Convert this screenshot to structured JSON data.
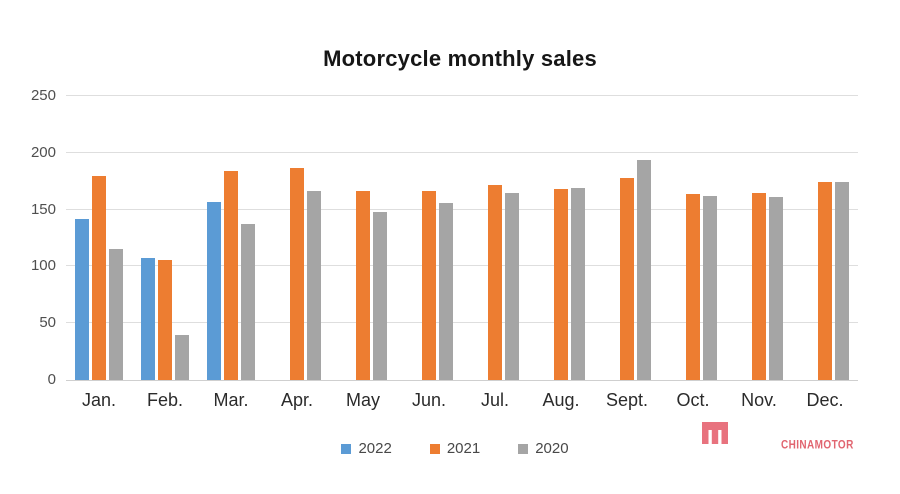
{
  "title": "Motorcycle monthly sales",
  "colors": {
    "series_2022": "#5B9BD5",
    "series_2021": "#ED7D31",
    "series_2020": "#A5A5A5",
    "gridline": "#DEDEDE",
    "axis_line": "#CFCFCF",
    "y_tick_text": "#4F4F4F",
    "x_label_text": "#2B2B2B",
    "title_text": "#161616",
    "watermark_red": "#E16570"
  },
  "chart_data": {
    "type": "bar",
    "title": "Motorcycle monthly sales",
    "categories": [
      "Jan.",
      "Feb.",
      "Mar.",
      "Apr.",
      "May",
      "Jun.",
      "Jul.",
      "Aug.",
      "Sept.",
      "Oct.",
      "Nov.",
      "Dec."
    ],
    "series": [
      {
        "name": "2022",
        "color": "#5B9BD5",
        "values": [
          142,
          107,
          157,
          null,
          null,
          null,
          null,
          null,
          null,
          null,
          null,
          null
        ]
      },
      {
        "name": "2021",
        "color": "#ED7D31",
        "values": [
          180,
          106,
          184,
          187,
          166,
          166,
          172,
          168,
          178,
          164,
          165,
          174
        ]
      },
      {
        "name": "2020",
        "color": "#A5A5A5",
        "values": [
          115,
          40,
          137,
          166,
          148,
          156,
          165,
          169,
          194,
          162,
          161,
          174
        ]
      }
    ],
    "xlabel": "",
    "ylabel": "",
    "ylim": [
      0,
      250
    ],
    "yticks": [
      0,
      50,
      100,
      150,
      200,
      250
    ],
    "grid": true,
    "legend_position": "bottom"
  },
  "legend": {
    "items": [
      "2022",
      "2021",
      "2020"
    ]
  },
  "watermark": {
    "brand": "CHINAMOTOR",
    "logo": "m-logo-icon"
  }
}
